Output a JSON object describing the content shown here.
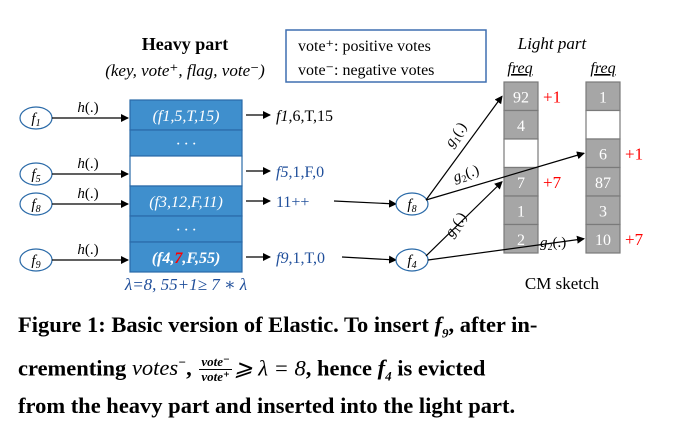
{
  "heavy_part": {
    "title": "Heavy part",
    "tuple_format": "(key, vote⁺, flag, vote⁻)",
    "rows": [
      {
        "flow": "f1",
        "hash": "h(.)",
        "entry": "(f1,5,T,15)",
        "output": "f1,6,T,15"
      },
      {
        "flow": "",
        "hash": "",
        "entry": "· · ·",
        "output": ""
      },
      {
        "flow": "f5",
        "hash": "h(.)",
        "entry": "",
        "output": "f5,1,F,0"
      },
      {
        "flow": "f8",
        "hash": "h(.)",
        "entry": "(f3,12,F,11)",
        "output": "11++"
      },
      {
        "flow": "",
        "hash": "",
        "entry": "· · ·",
        "output": ""
      },
      {
        "flow": "f9",
        "hash": "h(.)",
        "entry": "(f4,7,F,55)",
        "output": "f9,1,T,0"
      }
    ],
    "evict_highlight": "7",
    "condition": "λ=8, 55+1≥ 7 ∗ λ"
  },
  "legend": {
    "positive": "vote⁺: positive votes",
    "negative": "vote⁻: negative votes"
  },
  "light_part": {
    "title": "Light part",
    "column_label": "freq",
    "col1": [
      {
        "value": "92",
        "inc": "+1"
      },
      {
        "value": "4",
        "inc": ""
      },
      {
        "value": "",
        "inc": ""
      },
      {
        "value": "7",
        "inc": "+7"
      },
      {
        "value": "1",
        "inc": ""
      },
      {
        "value": "2",
        "inc": ""
      }
    ],
    "col2": [
      {
        "value": "1",
        "inc": ""
      },
      {
        "value": "",
        "inc": ""
      },
      {
        "value": "6",
        "inc": "+1"
      },
      {
        "value": "87",
        "inc": ""
      },
      {
        "value": "3",
        "inc": ""
      },
      {
        "value": "10",
        "inc": "+7"
      }
    ],
    "sketch_label": "CM sketch"
  },
  "light_nodes": {
    "f8": "f8",
    "f4": "f4"
  },
  "hash_labels": {
    "g1": "g1(.)",
    "g2": "g2(.)"
  },
  "colors": {
    "heavy_fill": "#3f8fcd",
    "heavy_empty": "#ffffff",
    "light_fill": "#a6a6a6",
    "light_text": "#ffffff",
    "highlight": "#ff0000",
    "blue_text": "#1f4e9a",
    "red_text": "#ff0000"
  },
  "caption": {
    "part1": "Figure 1: Basic version of Elastic. To insert ",
    "f9": "f",
    "f9_sub": "9",
    "part2": ", after in-",
    "part3": "crementing ",
    "votes_minus": "votes",
    "sup_minus": "−",
    "part4": ", ",
    "frac_num": "vote⁻",
    "frac_den": "vote⁺",
    "ineq": "⩾ λ = 8",
    "part5": ", hence ",
    "f4": "f",
    "f4_sub": "4",
    "part6": " is evicted",
    "line3": "from the heavy part and inserted into the light part."
  }
}
